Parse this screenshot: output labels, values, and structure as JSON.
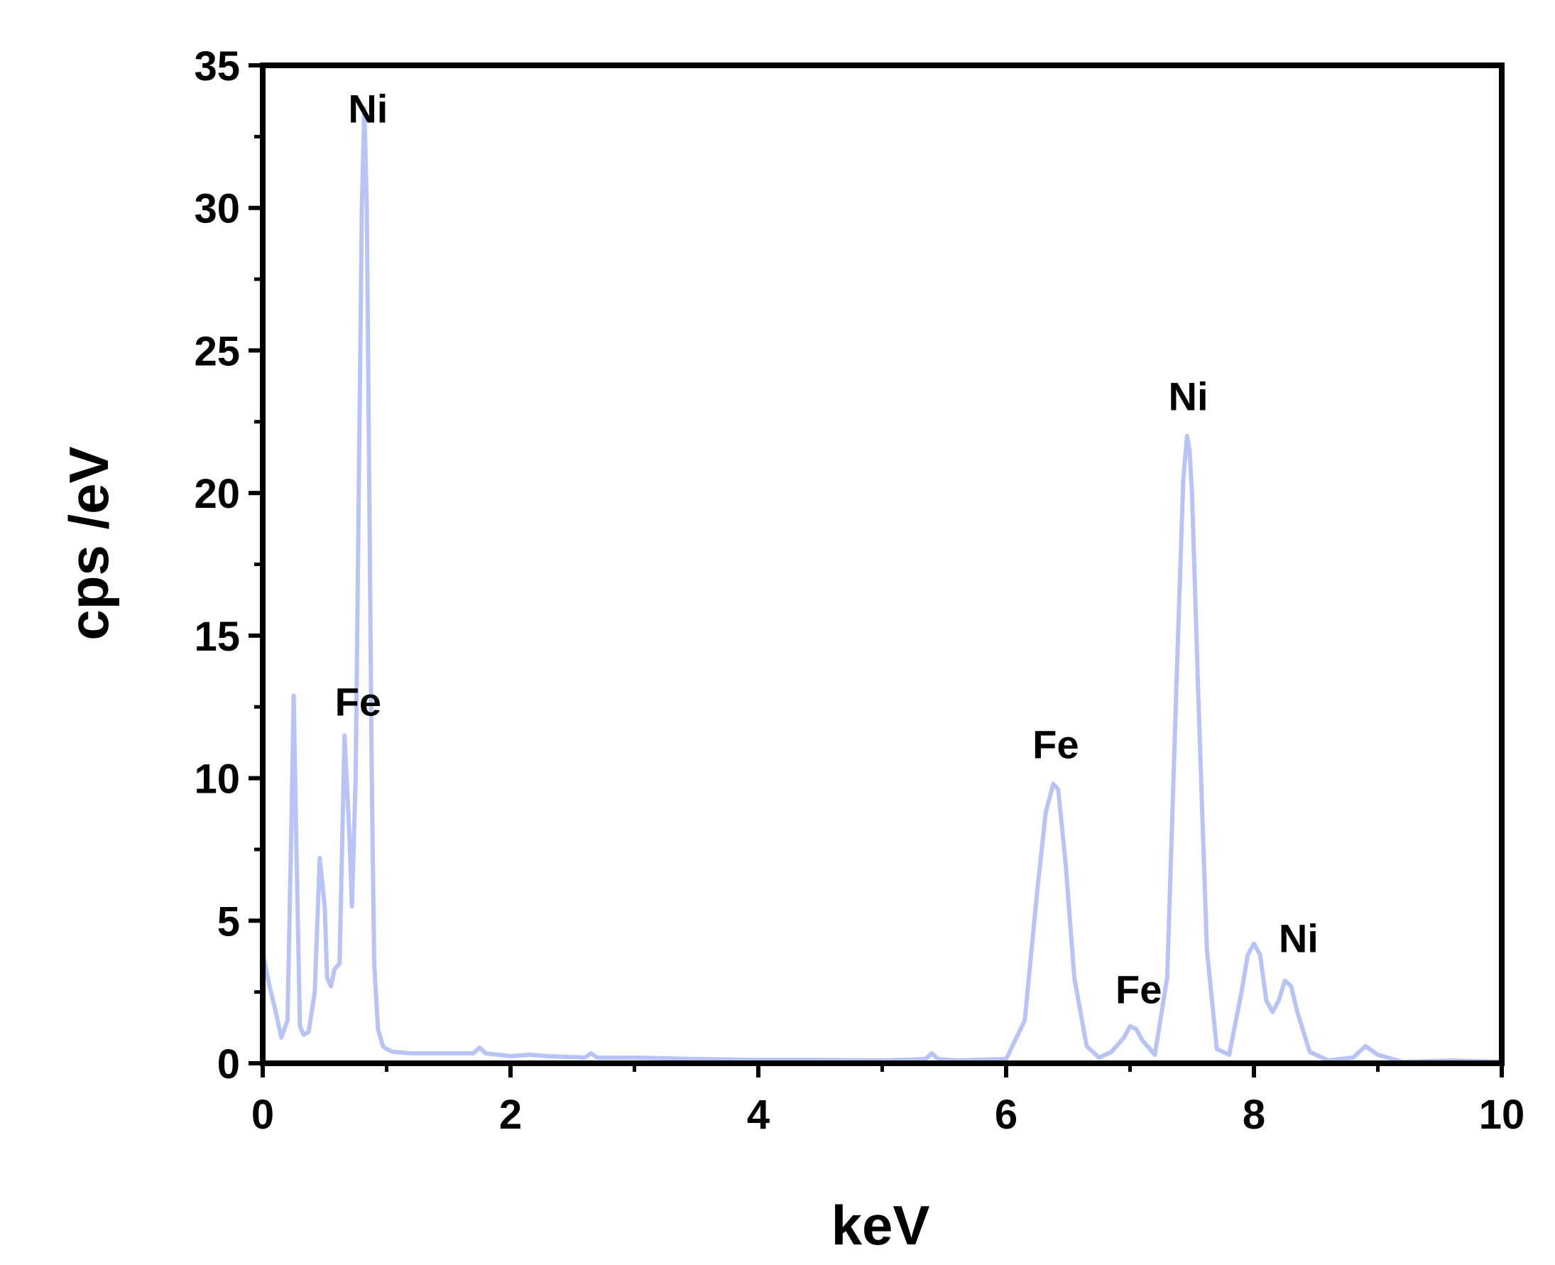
{
  "chart_data": {
    "type": "line",
    "title": "",
    "xlabel": "keV",
    "ylabel": "cps /eV",
    "xlim": [
      0,
      10
    ],
    "ylim": [
      0,
      35
    ],
    "x_ticks": [
      0,
      2,
      4,
      6,
      8,
      10
    ],
    "y_ticks": [
      0,
      5,
      10,
      15,
      20,
      25,
      30,
      35
    ],
    "x_tick_labels": [
      "0",
      "2",
      "4",
      "6",
      "8",
      "10"
    ],
    "y_tick_labels": [
      "0",
      "5",
      "10",
      "15",
      "20",
      "25",
      "30",
      "35"
    ],
    "grid": false,
    "line_color": "#b8c4f6",
    "series": [
      {
        "x": [
          0.0,
          0.05,
          0.1,
          0.15,
          0.2,
          0.23,
          0.25,
          0.27,
          0.3,
          0.33,
          0.37,
          0.42,
          0.46,
          0.5,
          0.52,
          0.55,
          0.58,
          0.62,
          0.66,
          0.7,
          0.72,
          0.75,
          0.78,
          0.8,
          0.82,
          0.84,
          0.86,
          0.88,
          0.9,
          0.93,
          0.97,
          1.0,
          1.05,
          1.2,
          1.5,
          1.7,
          1.75,
          1.8,
          2.0,
          2.15,
          2.3,
          2.6,
          2.65,
          2.7,
          3.0,
          3.5,
          4.0,
          4.5,
          5.0,
          5.35,
          5.4,
          5.45,
          5.6,
          6.0,
          6.15,
          6.25,
          6.32,
          6.38,
          6.4,
          6.42,
          6.48,
          6.55,
          6.65,
          6.75,
          6.85,
          6.95,
          7.0,
          7.05,
          7.1,
          7.2,
          7.3,
          7.38,
          7.43,
          7.46,
          7.48,
          7.5,
          7.55,
          7.62,
          7.7,
          7.8,
          7.9,
          7.95,
          8.0,
          8.05,
          8.1,
          8.15,
          8.2,
          8.25,
          8.3,
          8.35,
          8.45,
          8.6,
          8.8,
          8.9,
          9.0,
          9.2,
          9.6,
          10.0
        ],
        "y": [
          3.9,
          2.8,
          1.9,
          0.9,
          1.5,
          8.0,
          12.9,
          8.0,
          1.3,
          1.0,
          1.1,
          2.5,
          7.2,
          5.5,
          3.0,
          2.7,
          3.3,
          3.5,
          11.5,
          8.0,
          5.5,
          10.0,
          22.0,
          30.0,
          33.5,
          30.0,
          20.0,
          10.0,
          3.5,
          1.2,
          0.6,
          0.5,
          0.4,
          0.35,
          0.35,
          0.35,
          0.55,
          0.35,
          0.25,
          0.3,
          0.25,
          0.2,
          0.35,
          0.2,
          0.2,
          0.15,
          0.12,
          0.12,
          0.1,
          0.15,
          0.35,
          0.15,
          0.1,
          0.15,
          1.5,
          6.0,
          8.8,
          9.8,
          9.7,
          9.6,
          7.0,
          3.0,
          0.6,
          0.2,
          0.4,
          0.9,
          1.3,
          1.2,
          0.8,
          0.3,
          3.0,
          14.0,
          20.5,
          22.0,
          21.5,
          20.0,
          13.0,
          4.0,
          0.5,
          0.3,
          2.5,
          3.8,
          4.2,
          3.8,
          2.2,
          1.8,
          2.2,
          2.9,
          2.7,
          1.8,
          0.4,
          0.1,
          0.2,
          0.6,
          0.3,
          0.05,
          0.1,
          0.05
        ]
      }
    ],
    "annotations": [
      {
        "text": "Ni",
        "x": 0.85,
        "y": 33.0
      },
      {
        "text": "Fe",
        "x": 0.77,
        "y": 12.2
      },
      {
        "text": "Fe",
        "x": 6.4,
        "y": 10.7
      },
      {
        "text": "Ni",
        "x": 7.47,
        "y": 22.9
      },
      {
        "text": "Fe",
        "x": 7.07,
        "y": 2.1
      },
      {
        "text": "Ni",
        "x": 8.36,
        "y": 3.9
      }
    ]
  }
}
